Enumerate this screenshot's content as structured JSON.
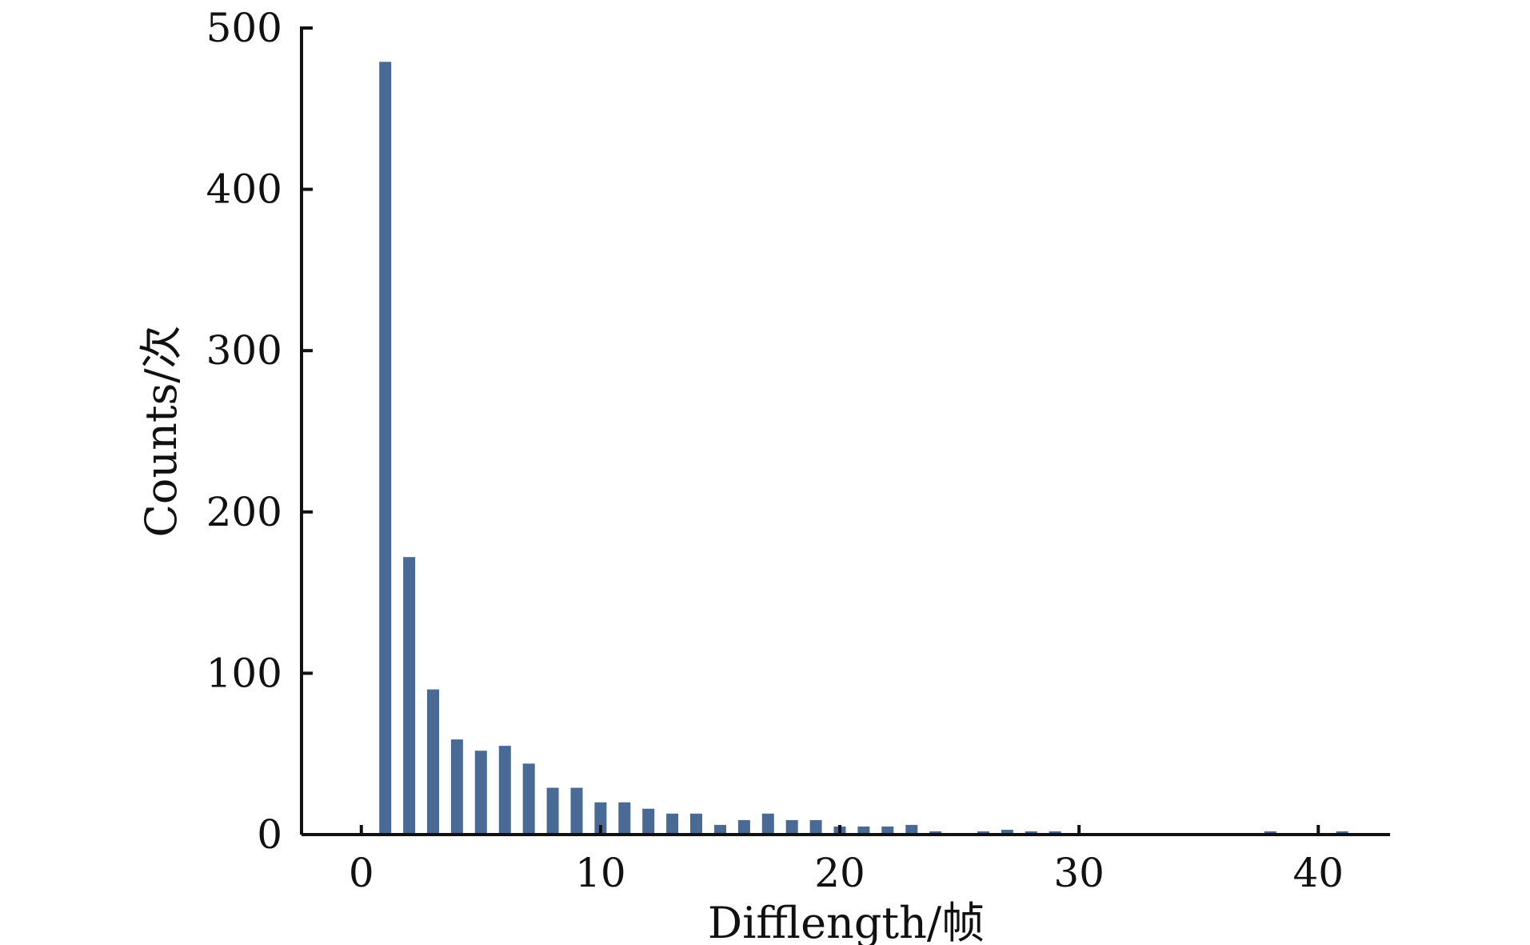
{
  "chart_data": {
    "type": "bar",
    "title": "",
    "xlabel": "Difflength/帧",
    "ylabel": "Counts/次",
    "xlim": [
      -2.5,
      43
    ],
    "ylim": [
      0,
      500
    ],
    "xticks": [
      0,
      10,
      20,
      30,
      40
    ],
    "yticks": [
      0,
      100,
      200,
      300,
      400,
      500
    ],
    "grid": false,
    "legend": "none",
    "bar_color": "#4a6a96",
    "x": [
      1,
      2,
      3,
      4,
      5,
      6,
      7,
      8,
      9,
      10,
      11,
      12,
      13,
      14,
      15,
      16,
      17,
      18,
      19,
      20,
      21,
      22,
      23,
      24,
      26,
      27,
      28,
      29,
      38,
      41
    ],
    "values": [
      479,
      172,
      90,
      59,
      52,
      55,
      44,
      29,
      29,
      20,
      20,
      16,
      13,
      13,
      6,
      9,
      13,
      9,
      9,
      5,
      5,
      5,
      6,
      2,
      2,
      3,
      2,
      2,
      2,
      2
    ]
  }
}
